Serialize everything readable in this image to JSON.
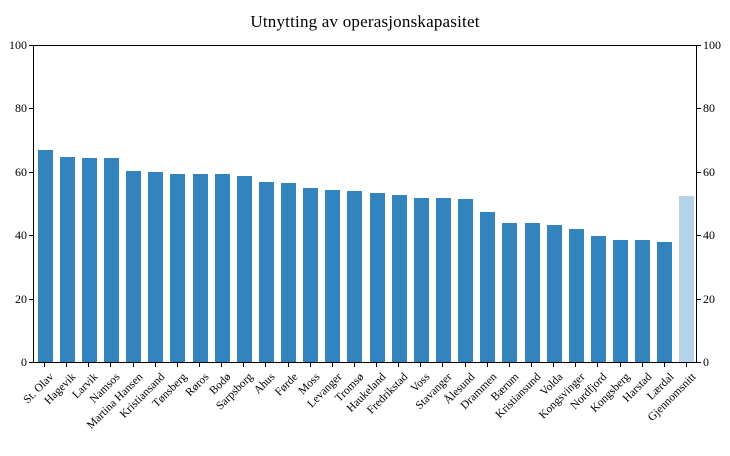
{
  "title": "Utnytting av operasjonskapasitet",
  "chart_data": {
    "type": "bar",
    "title": "Utnytting av operasjonskapasitet",
    "xlabel": "",
    "ylabel": "",
    "ylim": [
      0,
      100
    ],
    "yticks": [
      0,
      20,
      40,
      60,
      80,
      100
    ],
    "grid": false,
    "legend_position": "none",
    "bar_color": "#3383be",
    "highlight_color": "#b5d3e8",
    "highlight_index": 29,
    "categories": [
      "St. Olav",
      "Hagevik",
      "Larvik",
      "Namsos",
      "Martina Hansen",
      "Kristiansand",
      "Tønsberg",
      "Røros",
      "Bodø",
      "Sarpsborg",
      "Ahus",
      "Førde",
      "Moss",
      "Levanger",
      "Tromsø",
      "Haukeland",
      "Fredrikstad",
      "Voss",
      "Stavanger",
      "Ålesund",
      "Drammen",
      "Bærum",
      "Kristiansund",
      "Volda",
      "Kongsvinger",
      "Nordfjord",
      "Kongsberg",
      "Harstad",
      "Lærdal",
      "Gjennomsnitt"
    ],
    "values": [
      67,
      65,
      64.5,
      64.5,
      60.5,
      60,
      59.5,
      59.5,
      59.5,
      59,
      57,
      56.5,
      55,
      54.5,
      54,
      53.5,
      53,
      52,
      52,
      51.5,
      47.5,
      44,
      44,
      43.5,
      42,
      40,
      38.5,
      38.5,
      38,
      52.5
    ]
  }
}
